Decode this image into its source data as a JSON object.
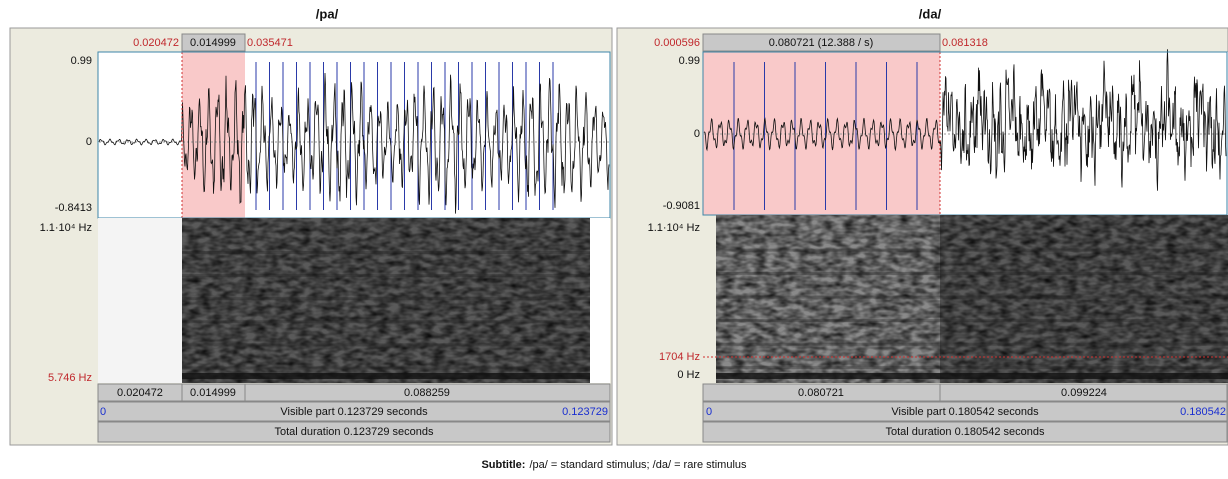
{
  "panels": [
    {
      "title": "/pa/",
      "selection_times": [
        "0.020472",
        "0.014999",
        "0.035471"
      ],
      "amplitude_labels": [
        "0.99",
        "0",
        "-0.8413"
      ],
      "frequency_labels": [
        "1.1·10⁴ Hz",
        "5.746 Hz"
      ],
      "segments": [
        "0.020472",
        "0.014999",
        "0.088259"
      ],
      "visible_start": "0",
      "visible_part": "Visible part 0.123729 seconds",
      "visible_end": "0.123729",
      "total_duration": "Total duration 0.123729 seconds"
    },
    {
      "title": "/da/",
      "selection_times": [
        "0.000596",
        "0.080721 (12.388 / s)",
        "0.081318"
      ],
      "amplitude_labels": [
        "0.99",
        "0",
        "-0.9081"
      ],
      "frequency_labels": [
        "1.1·10⁴ Hz",
        "1704 Hz",
        "0 Hz"
      ],
      "segments": [
        "0.080721",
        "0.099224"
      ],
      "visible_start": "0",
      "visible_part": "Visible part 0.180542 seconds",
      "visible_end": "0.180542",
      "total_duration": "Total duration 0.180542 seconds"
    }
  ],
  "caption": {
    "label": "Subtitle:",
    "text": "/pa/ = standard stimulus; /da/ = rare stimulus"
  }
}
